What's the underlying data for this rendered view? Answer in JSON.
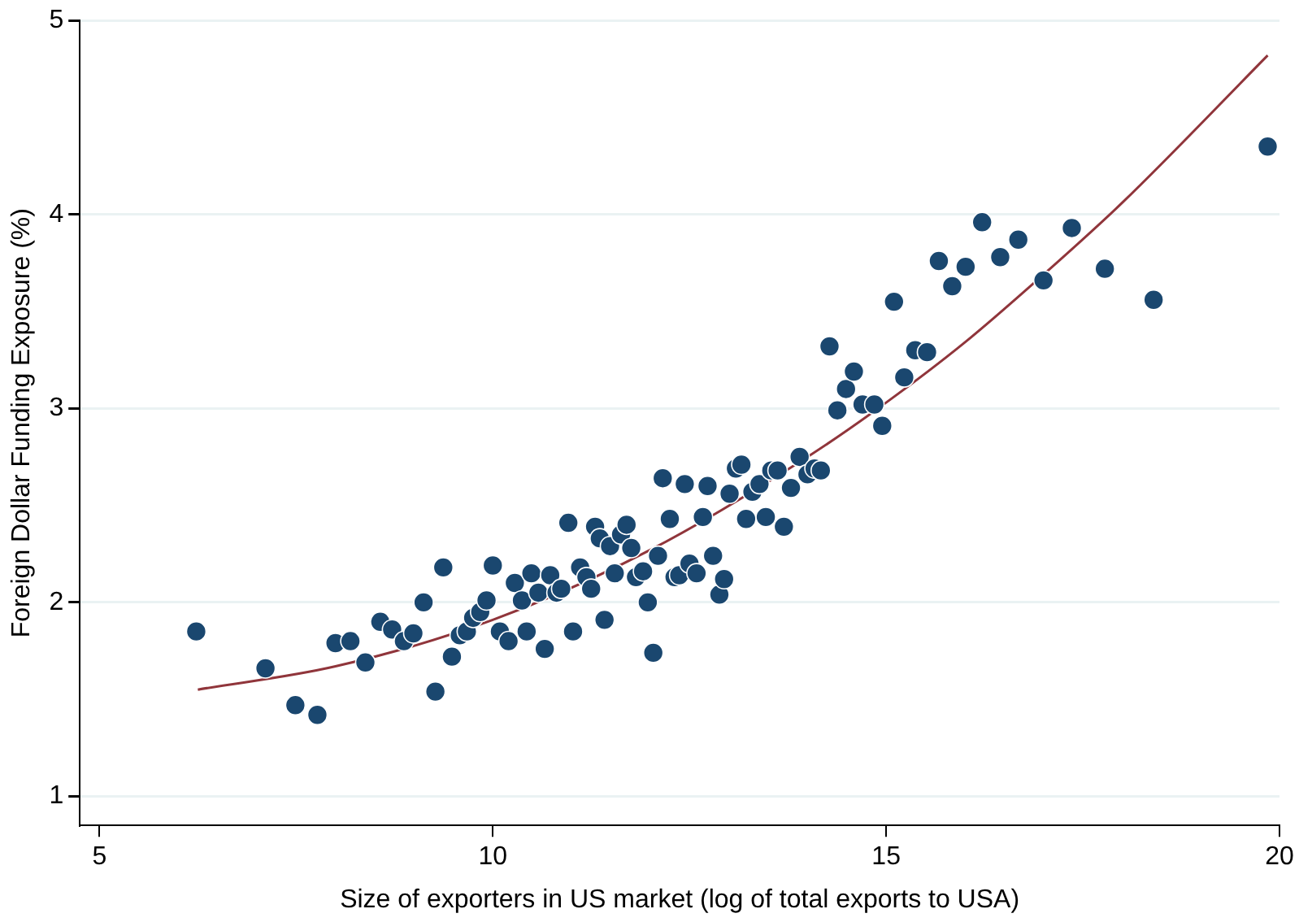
{
  "chart_data": {
    "type": "scatter",
    "xlabel": "Size of exporters in US market (log of total exports to USA)",
    "ylabel": "Foreign Dollar Funding Exposure (%)",
    "xlim": [
      4.75,
      20
    ],
    "ylim": [
      0.85,
      5
    ],
    "xticks": [
      5,
      10,
      15,
      20
    ],
    "yticks": [
      1,
      2,
      3,
      4,
      5
    ],
    "grid": "y",
    "legend": false,
    "marker": "circle",
    "series": [
      {
        "color": "#1a476f",
        "x": [
          6.23,
          7.11,
          7.49,
          7.77,
          8.0,
          8.19,
          8.38,
          8.57,
          8.72,
          8.87,
          8.99,
          9.12,
          9.27,
          9.37,
          9.48,
          9.58,
          9.67,
          9.75,
          9.84,
          9.92,
          10.0,
          10.09,
          10.2,
          10.28,
          10.37,
          10.43,
          10.49,
          10.58,
          10.66,
          10.73,
          10.81,
          10.87,
          10.96,
          11.02,
          11.11,
          11.19,
          11.25,
          11.3,
          11.36,
          11.42,
          11.49,
          11.55,
          11.63,
          11.7,
          11.76,
          11.82,
          11.91,
          11.97,
          12.04,
          12.1,
          12.16,
          12.25,
          12.31,
          12.37,
          12.44,
          12.5,
          12.59,
          12.67,
          12.73,
          12.8,
          12.88,
          12.94,
          13.01,
          13.09,
          13.16,
          13.22,
          13.3,
          13.39,
          13.47,
          13.54,
          13.62,
          13.7,
          13.79,
          13.9,
          14.0,
          14.09,
          14.17,
          14.28,
          14.38,
          14.49,
          14.59,
          14.7,
          14.85,
          14.95,
          15.1,
          15.23,
          15.37,
          15.52,
          15.67,
          15.84,
          16.01,
          16.22,
          16.45,
          16.68,
          17.0,
          17.36,
          17.78,
          18.4,
          19.85
        ],
        "values": [
          1.85,
          1.66,
          1.47,
          1.42,
          1.79,
          1.8,
          1.69,
          1.9,
          1.86,
          1.8,
          1.84,
          2.0,
          1.54,
          2.18,
          1.72,
          1.83,
          1.85,
          1.92,
          1.95,
          2.01,
          2.19,
          1.85,
          1.8,
          2.1,
          2.01,
          1.85,
          2.15,
          2.05,
          1.76,
          2.14,
          2.05,
          2.07,
          2.41,
          1.85,
          2.18,
          2.13,
          2.07,
          2.39,
          2.33,
          1.91,
          2.29,
          2.15,
          2.35,
          2.4,
          2.28,
          2.13,
          2.16,
          2.0,
          1.74,
          2.24,
          2.64,
          2.43,
          2.13,
          2.14,
          2.61,
          2.2,
          2.15,
          2.44,
          2.6,
          2.24,
          2.04,
          2.12,
          2.56,
          2.69,
          2.71,
          2.43,
          2.57,
          2.61,
          2.44,
          2.68,
          2.68,
          2.39,
          2.59,
          2.75,
          2.66,
          2.69,
          2.68,
          3.32,
          2.99,
          3.1,
          3.19,
          3.02,
          3.02,
          2.91,
          3.55,
          3.16,
          3.3,
          3.29,
          3.76,
          3.63,
          3.73,
          3.96,
          3.78,
          3.87,
          3.66,
          3.93,
          3.72,
          3.56,
          4.35
        ]
      },
      {
        "type": "line",
        "color": "#90353b",
        "marker": "none",
        "x": [
          6.25,
          8,
          10,
          12,
          14,
          15,
          16,
          17,
          18,
          19.85
        ],
        "values": [
          1.55,
          1.67,
          1.91,
          2.27,
          2.75,
          3.03,
          3.34,
          3.69,
          4.06,
          4.82
        ]
      }
    ]
  }
}
